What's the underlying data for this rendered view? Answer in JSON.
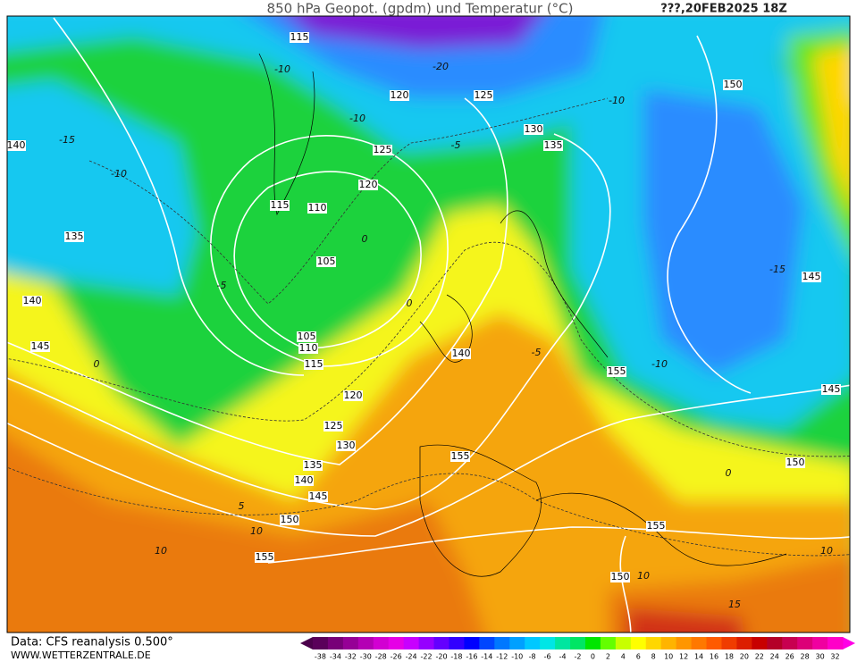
{
  "header": {
    "title": "850 hPa Geopot. (gpdm) und Temperatur (°C)",
    "date": "???,20FEB2025 18Z"
  },
  "footer": {
    "source": "Data: CFS reanalysis 0.500°",
    "site": "WWW.WETTERZENTRALE.DE"
  },
  "legend": {
    "labels": [
      -38,
      -34,
      -32,
      -30,
      -28,
      -26,
      -24,
      -22,
      -20,
      -18,
      -16,
      -14,
      -12,
      -10,
      -8,
      -6,
      -4,
      -2,
      0,
      2,
      4,
      6,
      8,
      10,
      12,
      14,
      16,
      18,
      20,
      22,
      24,
      26,
      28,
      30,
      32
    ],
    "colors": [
      "#5a005a",
      "#780078",
      "#960096",
      "#b400b4",
      "#d200d2",
      "#e600e6",
      "#c800ff",
      "#9600ff",
      "#6400ff",
      "#3200ff",
      "#0000ff",
      "#0046ff",
      "#0078ff",
      "#00a0ff",
      "#00c8ff",
      "#00e6e6",
      "#00e6a0",
      "#00e664",
      "#00e600",
      "#64ff00",
      "#c8ff00",
      "#ffff00",
      "#ffd700",
      "#ffb400",
      "#ff9600",
      "#ff7800",
      "#ff5a00",
      "#f03c00",
      "#dc1e00",
      "#c80000",
      "#b40028",
      "#c80050",
      "#dc0078",
      "#f000a0",
      "#ff00c8"
    ]
  },
  "map": {
    "geopotential_labels": [
      115,
      120,
      125,
      130,
      135,
      150,
      140,
      125,
      120,
      115,
      110,
      135,
      105,
      140,
      145,
      105,
      110,
      115,
      145,
      140,
      155,
      120,
      145,
      125,
      130,
      155,
      150,
      135,
      140,
      145,
      150,
      155,
      155,
      150
    ],
    "temperature_labels": [
      -15,
      -10,
      -5,
      0,
      -10,
      -20,
      -10,
      -5,
      0,
      0,
      5,
      10,
      10,
      -10,
      -15,
      -10,
      0,
      10,
      15,
      10,
      -5
    ]
  }
}
